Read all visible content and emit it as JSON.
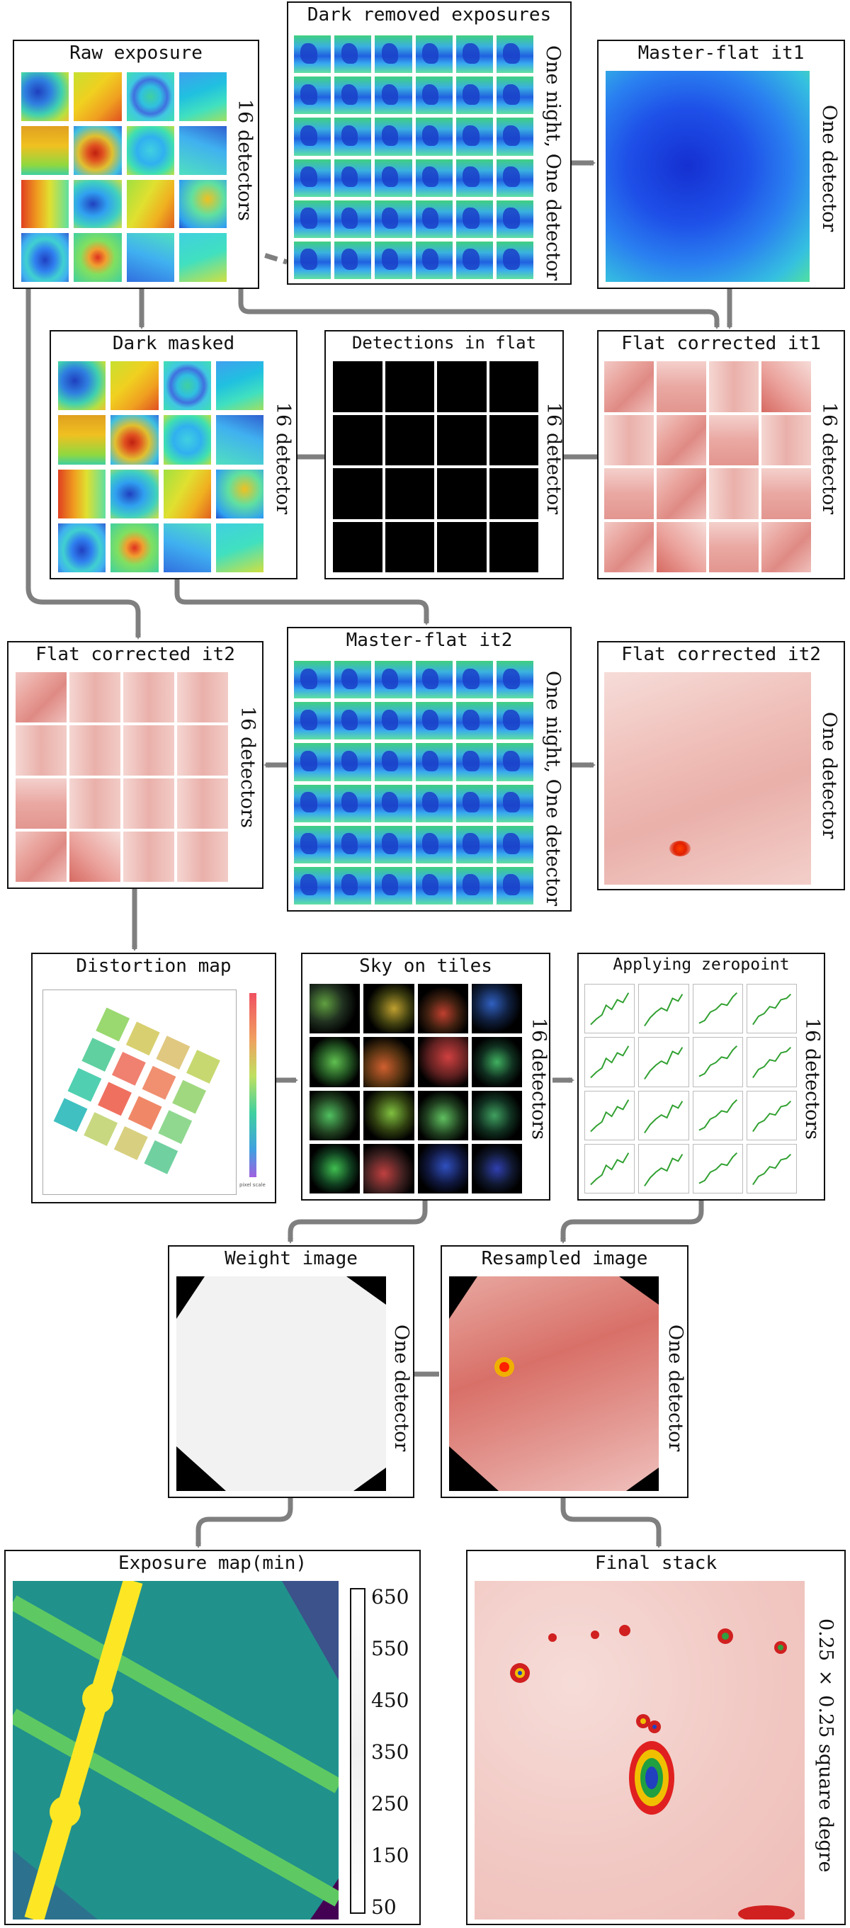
{
  "nodes": {
    "raw": {
      "title": "Raw exposure",
      "side": "16 detectors"
    },
    "dark_removed": {
      "title": "Dark removed exposures",
      "side": "One night, One detector"
    },
    "master_flat_1": {
      "title": "Master-flat it1",
      "side": "One detector"
    },
    "dark_masked": {
      "title": "Dark masked",
      "side": "16 detector"
    },
    "detections": {
      "title": "Detections in flat",
      "side": "16 detector"
    },
    "flat_corr_1": {
      "title": "Flat corrected it1",
      "side": "16 detector"
    },
    "flat_corr_2_grid": {
      "title": "Flat corrected it2",
      "side": "16 detectors"
    },
    "master_flat_2": {
      "title": "Master-flat it2",
      "side": "One night, One detector"
    },
    "flat_corr_2_single": {
      "title": "Flat corrected it2",
      "side": "One detector"
    },
    "distortion": {
      "title": "Distortion map",
      "colorbar_label": "pixel scale"
    },
    "sky": {
      "title": "Sky on tiles",
      "side": "16 detectors"
    },
    "zeropoint": {
      "title": "Applying zeropoint",
      "side": "16 detectors"
    },
    "weight": {
      "title": "Weight image",
      "side": "One detector"
    },
    "resampled": {
      "title": "Resampled image",
      "side": "One detector"
    },
    "exposure_map": {
      "title": "Exposure map(min)",
      "colorbar_ticks": [
        "650",
        "550",
        "450",
        "350",
        "250",
        "150",
        "50"
      ]
    },
    "final_stack": {
      "title": "Final stack",
      "side": "0.25 × 0.25 square degre"
    }
  },
  "colors": {
    "arrow": "#7f7f7f",
    "box_border": "#111111",
    "viridis_low": "#440154",
    "viridis_mid": "#21918c",
    "viridis_high": "#fde725",
    "flat_red": "#e39690"
  }
}
